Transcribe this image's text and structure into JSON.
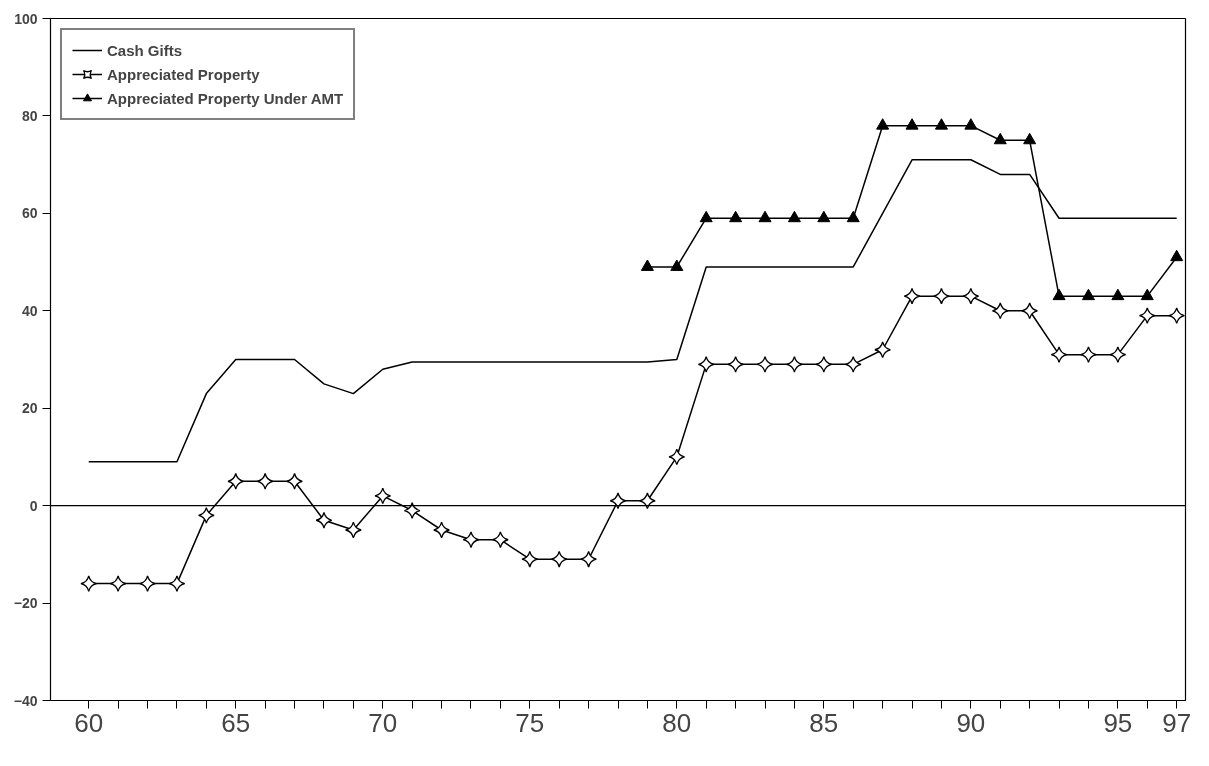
{
  "chart_data": {
    "type": "line",
    "x": [
      60,
      61,
      62,
      63,
      64,
      65,
      66,
      67,
      68,
      69,
      70,
      71,
      72,
      73,
      74,
      75,
      76,
      77,
      78,
      79,
      80,
      81,
      82,
      83,
      84,
      85,
      86,
      87,
      88,
      89,
      90,
      91,
      92,
      93,
      94,
      95,
      96,
      97
    ],
    "series": [
      {
        "name": "Cash Gifts",
        "color": "#000000",
        "marker": "none",
        "values": [
          9,
          9,
          9,
          9,
          23,
          30,
          30,
          30,
          25,
          23,
          28,
          29.5,
          29.5,
          29.5,
          29.5,
          29.5,
          29.5,
          29.5,
          29.5,
          29.5,
          30,
          49,
          49,
          49,
          49,
          49,
          49,
          60,
          71,
          71,
          71,
          68,
          68,
          59,
          59,
          59,
          59,
          59
        ]
      },
      {
        "name": "Appreciated Property",
        "color": "#000000",
        "marker": "diamond",
        "values": [
          -16,
          -16,
          -16,
          -16,
          -2,
          5,
          5,
          5,
          -3,
          -5,
          2,
          -1,
          -5,
          -7,
          -7,
          -11,
          -11,
          -11,
          1,
          1,
          10,
          29,
          29,
          29,
          29,
          29,
          29,
          32,
          43,
          43,
          43,
          40,
          40,
          31,
          31,
          31,
          39,
          39
        ]
      },
      {
        "name": "Appreciated Property Under AMT",
        "color": "#000000",
        "marker": "triangle",
        "values": [
          null,
          null,
          null,
          null,
          null,
          null,
          null,
          null,
          null,
          null,
          null,
          null,
          null,
          null,
          null,
          null,
          null,
          null,
          null,
          49,
          49,
          59,
          59,
          59,
          59,
          59,
          59,
          78,
          78,
          78,
          78,
          75,
          75,
          43,
          43,
          43,
          43,
          51
        ]
      }
    ],
    "xlim": [
      58.7,
      97.3
    ],
    "ylim": [
      -40,
      100
    ],
    "xticks": [
      60,
      {
        "value": 61,
        "label": null
      },
      {
        "value": 62,
        "label": null
      },
      {
        "value": 63,
        "label": null
      },
      {
        "value": 64,
        "label": null
      },
      65,
      {
        "value": 66,
        "label": null
      },
      {
        "value": 67,
        "label": null
      },
      {
        "value": 68,
        "label": null
      },
      {
        "value": 69,
        "label": null
      },
      70,
      {
        "value": 71,
        "label": null
      },
      {
        "value": 72,
        "label": null
      },
      {
        "value": 73,
        "label": null
      },
      {
        "value": 74,
        "label": null
      },
      75,
      {
        "value": 76,
        "label": null
      },
      {
        "value": 77,
        "label": null
      },
      {
        "value": 78,
        "label": null
      },
      {
        "value": 79,
        "label": null
      },
      80,
      {
        "value": 81,
        "label": null
      },
      {
        "value": 82,
        "label": null
      },
      {
        "value": 83,
        "label": null
      },
      {
        "value": 84,
        "label": null
      },
      85,
      {
        "value": 86,
        "label": null
      },
      {
        "value": 87,
        "label": null
      },
      {
        "value": 88,
        "label": null
      },
      {
        "value": 89,
        "label": null
      },
      90,
      {
        "value": 91,
        "label": null
      },
      {
        "value": 92,
        "label": null
      },
      {
        "value": 93,
        "label": null
      },
      {
        "value": 94,
        "label": null
      },
      95,
      {
        "value": 96,
        "label": null
      },
      97
    ],
    "yticks": [
      -40,
      -20,
      0,
      20,
      40,
      60,
      80,
      100
    ],
    "ref_lines": [
      {
        "axis": "y",
        "value": 0,
        "color": "#000000"
      }
    ],
    "grid": false,
    "legend": "top left",
    "line_style": "solid"
  }
}
